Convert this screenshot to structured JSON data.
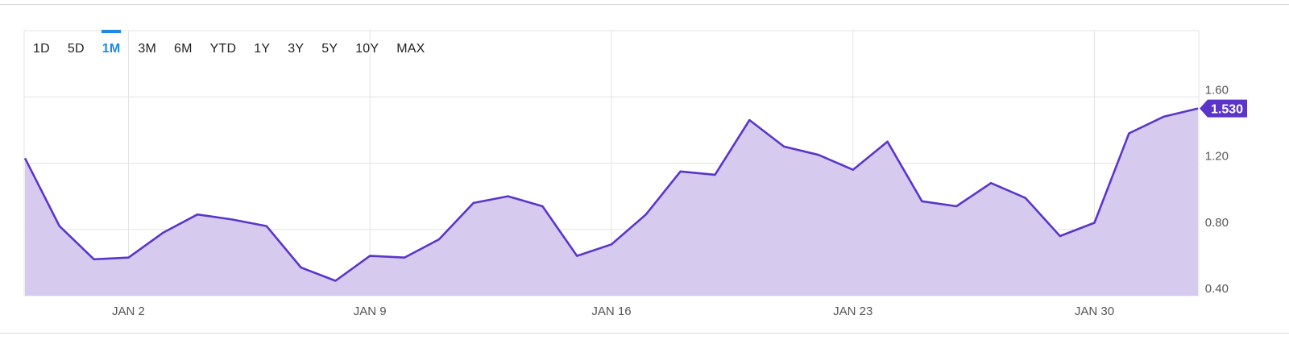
{
  "range_buttons": {
    "items": [
      "1D",
      "5D",
      "1M",
      "3M",
      "6M",
      "YTD",
      "1Y",
      "3Y",
      "5Y",
      "10Y",
      "MAX"
    ],
    "active": "1M"
  },
  "chart_data": {
    "type": "area",
    "x": [
      "Dec 30",
      "Dec 31",
      "Jan 1",
      "Jan 2",
      "Jan 3",
      "Jan 4",
      "Jan 5",
      "Jan 6",
      "Jan 7",
      "Jan 8",
      "Jan 9",
      "Jan 10",
      "Jan 11",
      "Jan 12",
      "Jan 13",
      "Jan 14",
      "Jan 15",
      "Jan 16",
      "Jan 17",
      "Jan 18",
      "Jan 19",
      "Jan 20",
      "Jan 21",
      "Jan 22",
      "Jan 23",
      "Jan 24",
      "Jan 25",
      "Jan 26",
      "Jan 27",
      "Jan 28",
      "Jan 29",
      "Jan 30",
      "Jan 31",
      "Feb 1",
      "Feb 2"
    ],
    "values": [
      1.23,
      0.82,
      0.62,
      0.63,
      0.78,
      0.89,
      0.86,
      0.82,
      0.57,
      0.49,
      0.64,
      0.63,
      0.74,
      0.96,
      1.0,
      0.94,
      0.64,
      0.71,
      0.89,
      1.15,
      1.13,
      1.46,
      1.3,
      1.25,
      1.16,
      1.33,
      0.97,
      0.94,
      1.08,
      0.99,
      0.76,
      0.84,
      1.38,
      1.48,
      1.53
    ],
    "x_tick_labels": [
      "JAN 2",
      "JAN 9",
      "JAN 16",
      "JAN 23",
      "JAN 30"
    ],
    "y_tick_labels": [
      "1.60",
      "1.20",
      "0.80",
      "0.40"
    ],
    "y_ticks": [
      1.6,
      1.2,
      0.8,
      0.4
    ],
    "ylim": [
      0.4,
      2.0
    ],
    "last_value_label": "1.530",
    "grid": true,
    "line_color": "#5b35c9",
    "fill_color": "#d6cbef",
    "badge_color": "#5b35c9"
  }
}
